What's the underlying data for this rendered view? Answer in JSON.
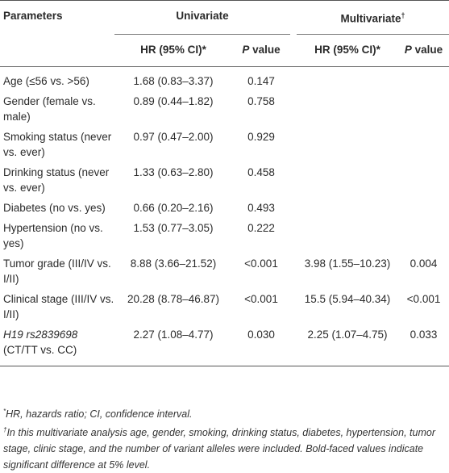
{
  "table": {
    "header": {
      "parameters": "Parameters",
      "univariate": "Univariate",
      "multivariate": "Multivariate",
      "multivariate_mark": "†",
      "hr_col": "HR (95% CI)*",
      "p_col_italic": "P",
      "p_col_rest": " value"
    },
    "rows": [
      {
        "param": "Age (≤56 vs. >56)",
        "uni_hr": "1.68 (0.83–3.37)",
        "uni_p": "0.147",
        "multi_hr": "",
        "multi_p": "",
        "bold": false
      },
      {
        "param": "Gender (female vs. male)",
        "uni_hr": "0.89 (0.44–1.82)",
        "uni_p": "0.758",
        "multi_hr": "",
        "multi_p": "",
        "bold": false
      },
      {
        "param": "Smoking status (never vs. ever)",
        "uni_hr": "0.97 (0.47–2.00)",
        "uni_p": "0.929",
        "multi_hr": "",
        "multi_p": "",
        "bold": false
      },
      {
        "param": "Drinking status (never vs. ever)",
        "uni_hr": "1.33 (0.63–2.80)",
        "uni_p": "0.458",
        "multi_hr": "",
        "multi_p": "",
        "bold": false
      },
      {
        "param": "Diabetes (no vs. yes)",
        "uni_hr": "0.66 (0.20–2.16)",
        "uni_p": "0.493",
        "multi_hr": "",
        "multi_p": "",
        "bold": false
      },
      {
        "param": "Hypertension (no vs. yes)",
        "uni_hr": "1.53 (0.77–3.05)",
        "uni_p": "0.222",
        "multi_hr": "",
        "multi_p": "",
        "bold": false
      },
      {
        "param": "Tumor grade (III/IV vs. I/II)",
        "uni_hr": "8.88 (3.66–21.52)",
        "uni_p": "<0.001",
        "multi_hr": "3.98 (1.55–10.23)",
        "multi_p": "0.004",
        "bold": true
      },
      {
        "param": "Clinical stage (III/IV vs. I/II)",
        "uni_hr": "20.28 (8.78–46.87)",
        "uni_p": "<0.001",
        "multi_hr": "15.5 (5.94–40.34)",
        "multi_p": "<0.001",
        "bold": true
      },
      {
        "param_italic": "H19 rs2839698",
        "param": "(CT/TT vs. CC)",
        "uni_hr": "2.27 (1.08–4.77)",
        "uni_p": "0.030",
        "multi_hr": "2.25 (1.07–4.75)",
        "multi_p": "0.033",
        "bold": true
      }
    ]
  },
  "footnotes": {
    "note1_mark": "*",
    "note1": "HR, hazards ratio; CI, confidence interval.",
    "note2_mark": "†",
    "note2": "In this multivariate analysis age, gender, smoking, drinking status, diabetes, hypertension, tumor stage, clinic stage, and the number of variant alleles were included. Bold-faced values indicate significant difference at 5% level."
  }
}
